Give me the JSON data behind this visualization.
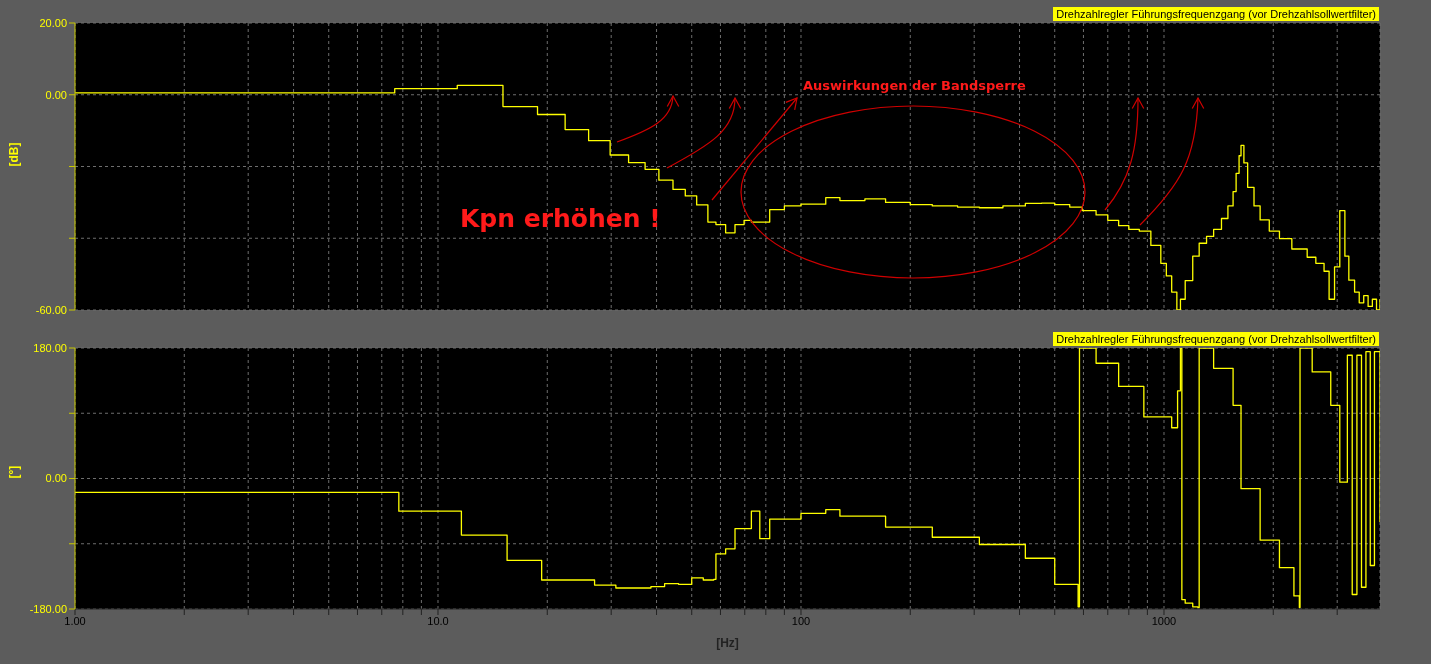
{
  "chart_data": [
    {
      "type": "step",
      "ylabel": "[dB]",
      "log": "x",
      "grid": true,
      "legend": "top right",
      "tick_labels": "y",
      "annotations": [
        "Kpn erhöhen !",
        "Auswirkungen der Bandsperre"
      ],
      "xlim": [
        1,
        3936
      ],
      "xticks": [
        {
          "value": 1,
          "label": null
        },
        {
          "value": 2,
          "label": null
        },
        {
          "value": 3,
          "label": null
        },
        {
          "value": 4,
          "label": null
        },
        {
          "value": 5,
          "label": null
        },
        {
          "value": 6,
          "label": null
        },
        {
          "value": 7,
          "label": null
        },
        {
          "value": 8,
          "label": null
        },
        {
          "value": 9,
          "label": null
        },
        {
          "value": 10,
          "label": null
        },
        {
          "value": 20,
          "label": null
        },
        {
          "value": 30,
          "label": null
        },
        {
          "value": 40,
          "label": null
        },
        {
          "value": 50,
          "label": null
        },
        {
          "value": 60,
          "label": null
        },
        {
          "value": 70,
          "label": null
        },
        {
          "value": 80,
          "label": null
        },
        {
          "value": 90,
          "label": null
        },
        {
          "value": 100,
          "label": null
        },
        {
          "value": 200,
          "label": null
        },
        {
          "value": 300,
          "label": null
        },
        {
          "value": 400,
          "label": null
        },
        {
          "value": 500,
          "label": null
        },
        {
          "value": 600,
          "label": null
        },
        {
          "value": 700,
          "label": null
        },
        {
          "value": 800,
          "label": null
        },
        {
          "value": 900,
          "label": null
        },
        {
          "value": 1000,
          "label": null
        },
        {
          "value": 2000,
          "label": null
        },
        {
          "value": 3000,
          "label": null
        }
      ],
      "ylim": [
        -60,
        20
      ],
      "yticks": [
        {
          "value": -60,
          "label": "-60.00"
        },
        {
          "value": -40,
          "label": null
        },
        {
          "value": -20,
          "label": null
        },
        {
          "value": 0,
          "label": "0.00"
        },
        {
          "value": 20,
          "label": "20.00"
        }
      ],
      "series": [
        {
          "name": "Drehzahlregler Führungsfrequenzgang (vor Drehzahlsollwertfilter)",
          "color": "#ffff00",
          "x": [
            1,
            7.6,
            11.3,
            15.1,
            18.8,
            22.4,
            26,
            29.8,
            33.5,
            37.2,
            40.6,
            44.4,
            48,
            51.6,
            55.4,
            58.3,
            62,
            65.8,
            69.7,
            73,
            82,
            90,
            100,
            117,
            128,
            150,
            171,
            200,
            230,
            270,
            310,
            360,
            415,
            460,
            500,
            550,
            595,
            650,
            700,
            750,
            800,
            855,
            920,
            980,
            1015,
            1050,
            1085,
            1110,
            1144,
            1200,
            1250,
            1310,
            1370,
            1440,
            1500,
            1550,
            1580,
            1610,
            1630,
            1660,
            1700,
            1770,
            1840,
            1950,
            2080,
            2250,
            2480,
            2620,
            2760,
            2850,
            2950,
            3050,
            3150,
            3230,
            3350,
            3450,
            3550,
            3650,
            3750,
            3850,
            3936
          ],
          "values": [
            0.5,
            1.7,
            2.6,
            -3.3,
            -5.5,
            -9.7,
            -12.8,
            -16.8,
            -18.9,
            -20.8,
            -23.8,
            -26.4,
            -28.2,
            -30.7,
            -35.5,
            -36.2,
            -38.5,
            -36.2,
            -35,
            -35.5,
            -32,
            -31,
            -30.5,
            -28.7,
            -29.5,
            -29,
            -30,
            -30.6,
            -31,
            -31.3,
            -31.5,
            -31,
            -30.3,
            -30.2,
            -30.6,
            -31.3,
            -32.3,
            -33.5,
            -35,
            -36.5,
            -37.5,
            -38,
            -42,
            -47,
            -50.5,
            -55,
            -60,
            -57,
            -51.8,
            -45,
            -41.4,
            -39.5,
            -37.5,
            -34.5,
            -31,
            -27,
            -21.9,
            -17,
            -14.1,
            -19,
            -25.8,
            -31,
            -34.9,
            -38,
            -40.1,
            -43,
            -45.3,
            -47,
            -49.2,
            -57,
            -48,
            -32.3,
            -45,
            -51.7,
            -55,
            -58,
            -56,
            -59,
            -57,
            -60,
            -57
          ]
        }
      ]
    },
    {
      "type": "step",
      "ylabel": "[°]",
      "xlabel": "[Hz]",
      "log": "x",
      "grid": true,
      "legend": "top right",
      "xlim": [
        1,
        3936
      ],
      "xticks": [
        {
          "value": 1,
          "label": "1.00"
        },
        {
          "value": 2,
          "label": null
        },
        {
          "value": 3,
          "label": null
        },
        {
          "value": 4,
          "label": null
        },
        {
          "value": 5,
          "label": null
        },
        {
          "value": 6,
          "label": null
        },
        {
          "value": 7,
          "label": null
        },
        {
          "value": 8,
          "label": null
        },
        {
          "value": 9,
          "label": null
        },
        {
          "value": 10,
          "label": "10.0"
        },
        {
          "value": 20,
          "label": null
        },
        {
          "value": 30,
          "label": null
        },
        {
          "value": 40,
          "label": null
        },
        {
          "value": 50,
          "label": null
        },
        {
          "value": 60,
          "label": null
        },
        {
          "value": 70,
          "label": null
        },
        {
          "value": 80,
          "label": null
        },
        {
          "value": 90,
          "label": null
        },
        100,
        {
          "value": 200,
          "label": null
        },
        {
          "value": 300,
          "label": null
        },
        {
          "value": 400,
          "label": null
        },
        {
          "value": 500,
          "label": null
        },
        {
          "value": 600,
          "label": null
        },
        {
          "value": 700,
          "label": null
        },
        {
          "value": 800,
          "label": null
        },
        {
          "value": 900,
          "label": null
        },
        1000,
        {
          "value": 2000,
          "label": null
        },
        {
          "value": 3000,
          "label": null
        }
      ],
      "ylim": [
        -180,
        180
      ],
      "yticks": [
        {
          "value": -180,
          "label": "-180.00"
        },
        {
          "value": -90,
          "label": null
        },
        {
          "value": 0,
          "label": "0.00"
        },
        {
          "value": 90,
          "label": null
        },
        {
          "value": 180,
          "label": "180.00"
        }
      ],
      "series": [
        {
          "name": "Drehzahlregler Führungsfrequenzgang (vor Drehzahlsollwertfilter)",
          "color": "#ffff00",
          "x": [
            1,
            7.8,
            11.6,
            15.5,
            19.3,
            27,
            30.9,
            38.6,
            42.1,
            46,
            50,
            53.8,
            57.5,
            58.3,
            62,
            65.8,
            73,
            77,
            82,
            100,
            117,
            128,
            171,
            230,
            310,
            415,
            500,
            580,
            585,
            650,
            750,
            880,
            1050,
            1090,
            1110,
            1120,
            1144,
            1200,
            1240,
            1250,
            1370,
            1550,
            1630,
            1840,
            2080,
            2280,
            2360,
            2370,
            2560,
            2880,
            3050,
            3200,
            3300,
            3400,
            3500,
            3600,
            3700,
            3800,
            3936
          ],
          "values": [
            -19,
            -45,
            -78,
            -113,
            -140,
            -147,
            -151,
            -149,
            -145,
            -146,
            -137,
            -140,
            -139,
            -104,
            -97,
            -69,
            -45,
            -83,
            -56,
            -48,
            -43,
            -52,
            -67,
            -81,
            -91,
            -110,
            -146,
            -177,
            180,
            159,
            127,
            85,
            70,
            121,
            180,
            -167,
            -172,
            -177,
            -178,
            180,
            152,
            101,
            -14,
            -85,
            -123,
            -162,
            -178,
            180,
            147,
            101,
            -5,
            170,
            -160,
            170,
            -150,
            175,
            -120,
            175,
            -60
          ]
        }
      ]
    }
  ]
}
